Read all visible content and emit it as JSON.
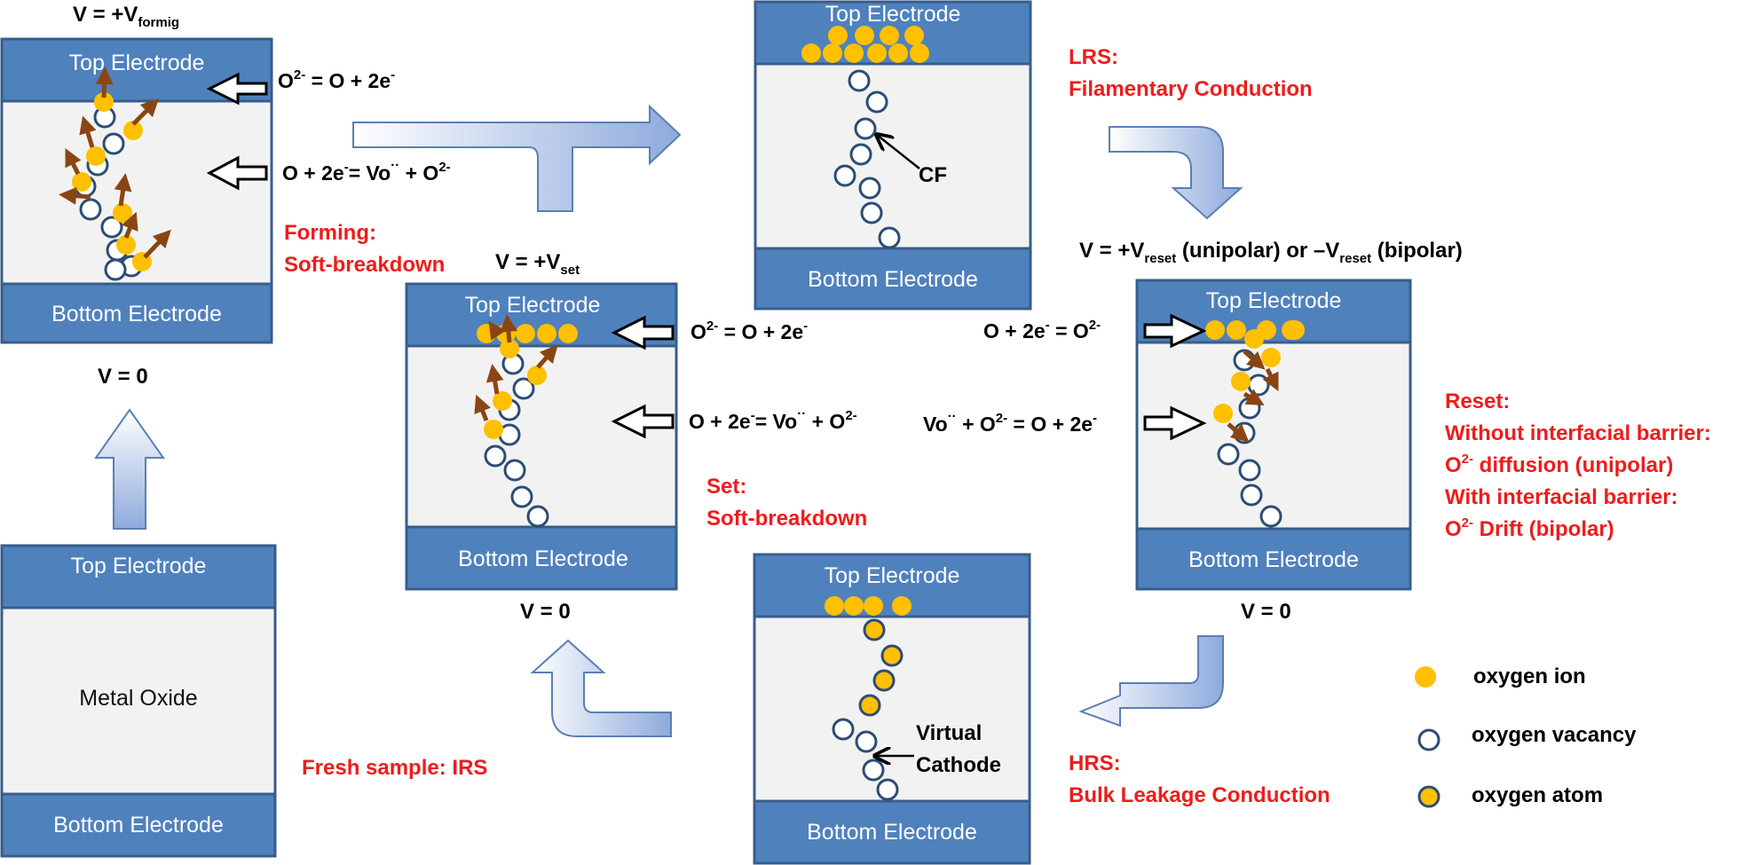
{
  "electrode": {
    "top": "Top Electrode",
    "bottom": "Bottom Electrode",
    "oxide": "Metal Oxide"
  },
  "voltages": {
    "forming": {
      "main": "V = +V",
      "sub": "formig"
    },
    "set": {
      "main": "V = +V",
      "sub": "set"
    },
    "reset": {
      "p1": "V = +V",
      "s1": "reset",
      "p2": " (unipolar) or –V",
      "s2": "reset",
      "p3": " (bipolar)"
    },
    "zero_forming": "V = 0",
    "zero_set": "V = 0",
    "zero_reset": "V = 0"
  },
  "equations": {
    "ox_a": "O",
    "ox_sup": "2-",
    "ox_b": " = O + 2e",
    "ox_c": "-",
    "red_a": "O + 2e",
    "red_sup": "-",
    "red_b": "= Vo",
    "red_dots": "··",
    "red_c": " + O",
    "red_sup2": "2-",
    "recomb_top_a": "O + 2e",
    "recomb_top_sup": "-",
    "recomb_top_b": " = O",
    "recomb_top_sup2": "2-",
    "recomb_a": "Vo",
    "recomb_dots": "··",
    "recomb_b": " + O",
    "recomb_sup": "2-",
    "recomb_c": " = O + 2e",
    "recomb_sup2": "-"
  },
  "labels": {
    "cf": "CF",
    "virtual_cathode_1": "Virtual",
    "virtual_cathode_2": "Cathode"
  },
  "states": {
    "forming_1": "Forming:",
    "forming_2": "Soft-breakdown",
    "lrs_1": "LRS:",
    "lrs_2": "Filamentary Conduction",
    "set_1": "Set:",
    "set_2": "Soft-breakdown",
    "fresh": "Fresh sample: IRS",
    "hrs_1": "HRS:",
    "hrs_2": "Bulk Leakage Conduction",
    "reset_1": "Reset:",
    "reset_2": "Without interfacial barrier:",
    "reset_3a": "O",
    "reset_3sup": "2-",
    "reset_3b": " diffusion (unipolar)",
    "reset_4": "With interfacial barrier:",
    "reset_5a": "O",
    "reset_5sup": "2-",
    "reset_5b": "  Drift (bipolar)"
  },
  "legend": {
    "ion": "oxygen  ion",
    "vacancy": "oxygen  vacancy",
    "atom": "oxygen  atom"
  },
  "colors": {
    "electrode": "#4f81bd",
    "oxide": "#f2f2f2",
    "ion": "#ffc000",
    "state_text": "#ee1c1c",
    "migration_arrow": "#8b4513"
  }
}
